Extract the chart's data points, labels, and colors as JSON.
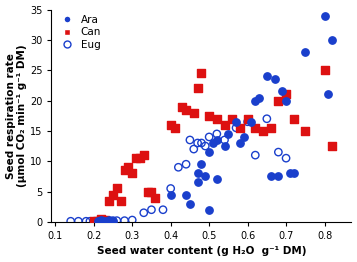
{
  "xlabel": "Seed water content (g H₂O  g⁻¹ DM)",
  "ylabel_line1": "Seed respiration rate",
  "ylabel_line2": "(µmol CO₂ min⁻¹ g⁻¹ DM)",
  "xlim": [
    0.09,
    0.87
  ],
  "ylim": [
    0,
    35
  ],
  "xticks": [
    0.1,
    0.2,
    0.3,
    0.4,
    0.5,
    0.6,
    0.7,
    0.8
  ],
  "yticks": [
    0,
    5,
    10,
    15,
    20,
    25,
    30,
    35
  ],
  "ara_x": [
    0.21,
    0.22,
    0.22,
    0.23,
    0.24,
    0.24,
    0.25,
    0.4,
    0.44,
    0.45,
    0.47,
    0.47,
    0.48,
    0.49,
    0.5,
    0.5,
    0.51,
    0.52,
    0.52,
    0.54,
    0.55,
    0.57,
    0.58,
    0.59,
    0.61,
    0.62,
    0.63,
    0.65,
    0.66,
    0.67,
    0.68,
    0.69,
    0.7,
    0.71,
    0.72,
    0.75,
    0.8,
    0.81,
    0.82
  ],
  "ara_y": [
    0.2,
    0.1,
    0.3,
    0.2,
    0.1,
    0.3,
    0.2,
    4.5,
    4.5,
    3.0,
    6.5,
    8.0,
    9.5,
    7.5,
    2.0,
    11.5,
    13.0,
    13.5,
    7.0,
    12.5,
    14.5,
    16.5,
    13.0,
    14.0,
    16.5,
    20.0,
    20.5,
    24.0,
    7.5,
    23.5,
    7.5,
    21.5,
    20.0,
    8.0,
    8.0,
    28.0,
    34.0,
    21.0,
    30.0
  ],
  "can_x": [
    0.2,
    0.21,
    0.22,
    0.23,
    0.24,
    0.25,
    0.26,
    0.27,
    0.28,
    0.29,
    0.3,
    0.31,
    0.32,
    0.33,
    0.34,
    0.35,
    0.36,
    0.4,
    0.41,
    0.43,
    0.44,
    0.46,
    0.47,
    0.48,
    0.5,
    0.52,
    0.54,
    0.56,
    0.58,
    0.6,
    0.62,
    0.64,
    0.66,
    0.68,
    0.7,
    0.72,
    0.75,
    0.8,
    0.82
  ],
  "can_y": [
    0.2,
    0.2,
    0.5,
    0.3,
    3.5,
    4.5,
    5.5,
    3.5,
    8.5,
    9.0,
    8.0,
    10.5,
    10.5,
    11.0,
    5.0,
    5.0,
    4.0,
    16.0,
    15.5,
    19.0,
    18.5,
    18.0,
    22.0,
    24.5,
    17.5,
    17.0,
    16.0,
    17.0,
    15.5,
    17.0,
    15.5,
    15.0,
    15.5,
    20.0,
    21.0,
    17.0,
    15.0,
    25.0,
    12.5
  ],
  "eug_x": [
    0.14,
    0.16,
    0.18,
    0.19,
    0.2,
    0.21,
    0.22,
    0.23,
    0.24,
    0.25,
    0.26,
    0.28,
    0.3,
    0.33,
    0.35,
    0.38,
    0.4,
    0.42,
    0.44,
    0.45,
    0.46,
    0.47,
    0.48,
    0.49,
    0.5,
    0.52,
    0.54,
    0.57,
    0.6,
    0.62,
    0.65,
    0.68,
    0.7
  ],
  "eug_y": [
    0.1,
    0.1,
    0.1,
    0.1,
    0.1,
    0.1,
    0.2,
    0.1,
    0.1,
    0.2,
    0.2,
    0.2,
    0.3,
    1.5,
    2.0,
    2.0,
    5.5,
    9.0,
    9.5,
    13.5,
    12.0,
    13.0,
    13.0,
    12.5,
    14.0,
    14.5,
    13.5,
    15.5,
    16.5,
    11.0,
    17.0,
    11.5,
    10.5
  ],
  "ara_color": "#1a3fcc",
  "can_color": "#dd1111",
  "eug_color": "#1a3fcc",
  "marker_size": 28
}
